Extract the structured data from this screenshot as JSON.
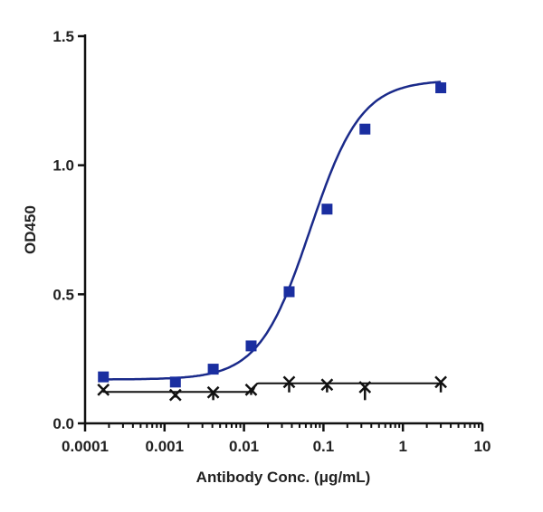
{
  "chart_data": {
    "type": "scatter",
    "title": "",
    "xlabel": "Antibody Conc. (μg/mL)",
    "ylabel": "OD450",
    "xscale": "log",
    "xlim": [
      0.0001,
      10
    ],
    "ylim": [
      0,
      1.5
    ],
    "xticks": [
      0.0001,
      0.001,
      0.01,
      0.1,
      1,
      10
    ],
    "xtick_labels": [
      "0.0001",
      "0.001",
      "0.01",
      "0.1",
      "1",
      "10"
    ],
    "yticks": [
      0,
      0.5,
      1.0,
      1.5
    ],
    "ytick_labels": [
      "0.0",
      "0.5",
      "1.0",
      "1.5"
    ],
    "grid": false,
    "legend": "none",
    "series": [
      {
        "marker": "square",
        "color": "#1a2ea0",
        "line_color": "#1a2a8a",
        "x": [
          0.00017,
          0.00137,
          0.0041,
          0.0123,
          0.037,
          0.111,
          0.333,
          3
        ],
        "y": [
          0.18,
          0.16,
          0.21,
          0.3,
          0.51,
          0.83,
          1.14,
          1.3
        ]
      },
      {
        "marker": "x",
        "color": "#111111",
        "line_color": "#111111",
        "x": [
          0.00017,
          0.00137,
          0.0041,
          0.0123,
          0.037,
          0.111,
          0.333,
          3
        ],
        "y": [
          0.13,
          0.11,
          0.12,
          0.13,
          0.16,
          0.15,
          0.14,
          0.16
        ],
        "error_low": [
          0.01,
          0.01,
          0.03,
          0.02,
          0.04,
          0.03,
          0.05,
          0.04
        ]
      }
    ]
  }
}
